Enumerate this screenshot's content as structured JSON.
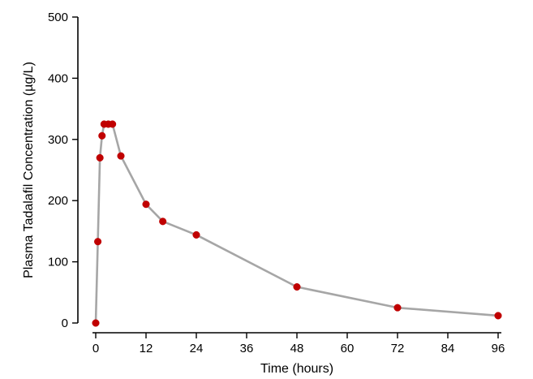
{
  "chart_data": {
    "type": "line",
    "title": "",
    "xlabel": "Time (hours)",
    "ylabel": "Plasma Tadalafil Concentration (µg/L)",
    "xlim": [
      0,
      96
    ],
    "ylim": [
      0,
      500
    ],
    "x_ticks": [
      "0",
      "12",
      "24",
      "36",
      "48",
      "60",
      "72",
      "84",
      "96"
    ],
    "y_ticks": [
      "0",
      "100",
      "200",
      "300",
      "400",
      "500"
    ],
    "grid": false,
    "legend": "none",
    "series": [
      {
        "color": "#a6a6a6",
        "marker_color": "#c00000",
        "points": [
          {
            "x": 0,
            "y": 0
          },
          {
            "x": 0.5,
            "y": 133
          },
          {
            "x": 1,
            "y": 270
          },
          {
            "x": 1.5,
            "y": 306
          },
          {
            "x": 2,
            "y": 325
          },
          {
            "x": 3,
            "y": 325
          },
          {
            "x": 4,
            "y": 325
          },
          {
            "x": 6,
            "y": 273
          },
          {
            "x": 12,
            "y": 194
          },
          {
            "x": 16,
            "y": 166
          },
          {
            "x": 24,
            "y": 144
          },
          {
            "x": 48,
            "y": 59
          },
          {
            "x": 72,
            "y": 25
          },
          {
            "x": 96,
            "y": 12
          }
        ]
      }
    ]
  }
}
